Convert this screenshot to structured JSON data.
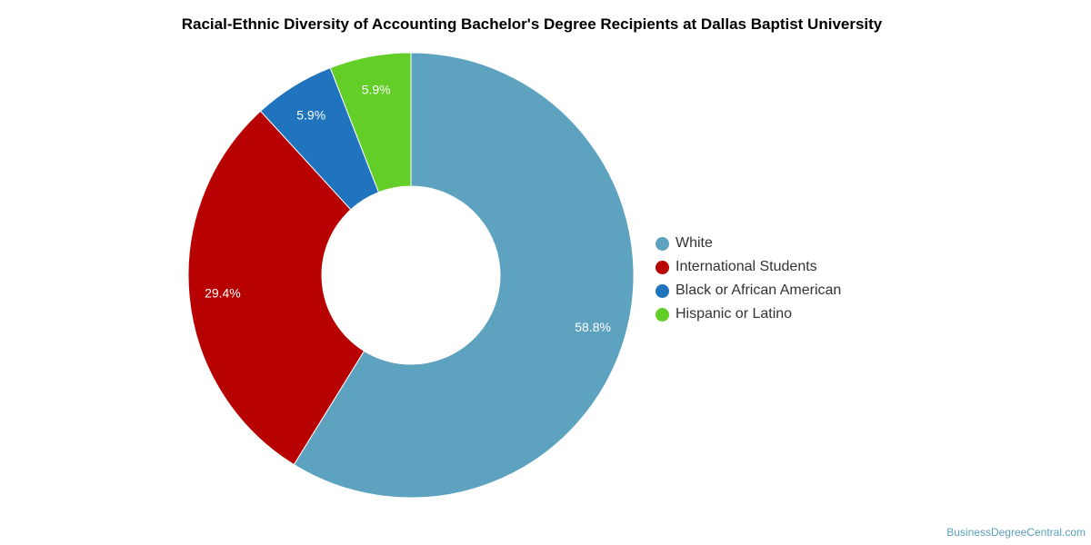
{
  "chart_data": {
    "type": "pie",
    "variant": "donut",
    "title": "Racial-Ethnic Diversity of Accounting Bachelor's Degree Recipients at Dallas Baptist University",
    "categories": [
      "White",
      "International Students",
      "Black or African American",
      "Hispanic or Latino"
    ],
    "values": [
      58.8,
      29.4,
      5.9,
      5.9
    ],
    "labels": [
      "58.8%",
      "29.4%",
      "5.9%",
      "5.9%"
    ],
    "colors": [
      "#5da2bf",
      "#b80202",
      "#1f74bd",
      "#62ce27"
    ],
    "legend_position": "right"
  },
  "legend": {
    "items": [
      {
        "label": "White",
        "color": "#5da2bf"
      },
      {
        "label": "International Students",
        "color": "#b80202"
      },
      {
        "label": "Black or African American",
        "color": "#1f74bd"
      },
      {
        "label": "Hispanic or Latino",
        "color": "#62ce27"
      }
    ]
  },
  "watermark": "BusinessDegreeCentral.com"
}
